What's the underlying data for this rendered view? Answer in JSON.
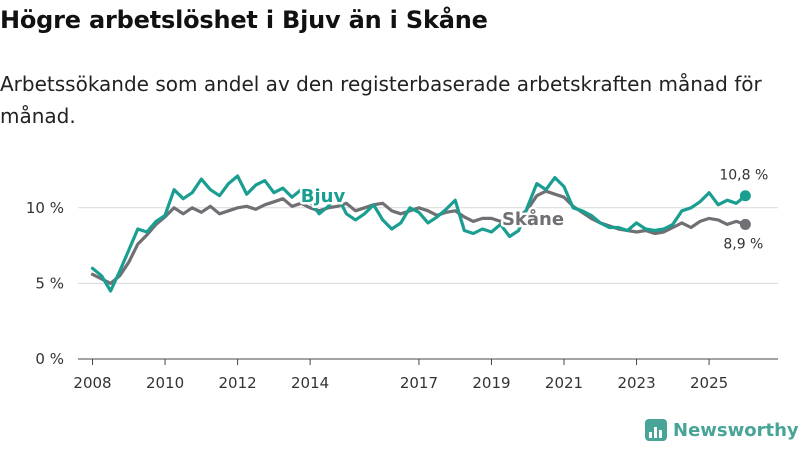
{
  "header": {
    "title": "Högre arbetslöshet i Bjuv än i Skåne",
    "subtitle": "Arbetssökande som andel av den registerbaserade arbetskraften månad för månad."
  },
  "brand": {
    "name": "Newsworthy",
    "icon": "newsworthy-logo-icon",
    "color": "#48a497"
  },
  "chart_data": {
    "type": "line",
    "title": "Högre arbetslöshet i Bjuv än i Skåne",
    "subtitle": "Arbetssökande som andel av den registerbaserade arbetskraften månad för månad.",
    "xlabel": "",
    "ylabel": "",
    "xlim": [
      2007.6,
      2026.9
    ],
    "ylim": [
      0,
      12.5
    ],
    "x_ticks": [
      {
        "value": 2008,
        "label": "2008"
      },
      {
        "value": 2010,
        "label": "2010"
      },
      {
        "value": 2012,
        "label": "2012"
      },
      {
        "value": 2014,
        "label": "2014"
      },
      {
        "value": 2017,
        "label": "2017"
      },
      {
        "value": 2019,
        "label": "2019"
      },
      {
        "value": 2021,
        "label": "2021"
      },
      {
        "value": 2023,
        "label": "2023"
      },
      {
        "value": 2025,
        "label": "2025"
      }
    ],
    "y_ticks": [
      {
        "value": 0,
        "label": "0 %"
      },
      {
        "value": 5,
        "label": "5 %"
      },
      {
        "value": 10,
        "label": "10 %"
      }
    ],
    "grid": true,
    "series": [
      {
        "name": "Skåne",
        "color": "#707074",
        "end_label": "8,9 %",
        "x": [
          2008.0,
          2008.25,
          2008.5,
          2008.75,
          2009.0,
          2009.25,
          2009.5,
          2009.75,
          2010.0,
          2010.25,
          2010.5,
          2010.75,
          2011.0,
          2011.25,
          2011.5,
          2011.75,
          2012.0,
          2012.25,
          2012.5,
          2012.75,
          2013.0,
          2013.25,
          2013.5,
          2013.75,
          2014.0,
          2014.25,
          2014.5,
          2014.75,
          2015.0,
          2015.25,
          2015.5,
          2015.75,
          2016.0,
          2016.25,
          2016.5,
          2016.75,
          2017.0,
          2017.25,
          2017.5,
          2017.75,
          2018.0,
          2018.25,
          2018.5,
          2018.75,
          2019.0,
          2019.25,
          2019.5,
          2019.75,
          2020.0,
          2020.25,
          2020.5,
          2020.75,
          2021.0,
          2021.25,
          2021.5,
          2021.75,
          2022.0,
          2022.25,
          2022.5,
          2022.75,
          2023.0,
          2023.25,
          2023.5,
          2023.75,
          2024.0,
          2024.25,
          2024.5,
          2024.75,
          2025.0,
          2025.25,
          2025.5,
          2025.75,
          2026.0
        ],
        "values": [
          5.6,
          5.3,
          5.0,
          5.5,
          6.4,
          7.6,
          8.2,
          8.9,
          9.4,
          10.0,
          9.6,
          10.0,
          9.7,
          10.1,
          9.6,
          9.8,
          10.0,
          10.1,
          9.9,
          10.2,
          10.4,
          10.6,
          10.1,
          10.3,
          10.0,
          9.8,
          10.0,
          10.1,
          10.3,
          9.8,
          10.0,
          10.2,
          10.3,
          9.8,
          9.6,
          9.8,
          10.0,
          9.8,
          9.5,
          9.7,
          9.8,
          9.4,
          9.1,
          9.3,
          9.3,
          9.1,
          9.2,
          9.4,
          9.9,
          10.8,
          11.1,
          10.9,
          10.7,
          10.1,
          9.7,
          9.3,
          9.0,
          8.8,
          8.6,
          8.5,
          8.4,
          8.5,
          8.3,
          8.4,
          8.7,
          9.0,
          8.7,
          9.1,
          9.3,
          9.2,
          8.9,
          9.1,
          8.9
        ]
      },
      {
        "name": "Bjuv",
        "color": "#1a9e91",
        "end_label": "10,8 %",
        "x": [
          2008.0,
          2008.25,
          2008.5,
          2008.75,
          2009.0,
          2009.25,
          2009.5,
          2009.75,
          2010.0,
          2010.25,
          2010.5,
          2010.75,
          2011.0,
          2011.25,
          2011.5,
          2011.75,
          2012.0,
          2012.25,
          2012.5,
          2012.75,
          2013.0,
          2013.25,
          2013.5,
          2013.75,
          2014.0,
          2014.25,
          2014.5,
          2014.75,
          2015.0,
          2015.25,
          2015.5,
          2015.75,
          2016.0,
          2016.25,
          2016.5,
          2016.75,
          2017.0,
          2017.25,
          2017.5,
          2017.75,
          2018.0,
          2018.25,
          2018.5,
          2018.75,
          2019.0,
          2019.25,
          2019.5,
          2019.75,
          2020.0,
          2020.25,
          2020.5,
          2020.75,
          2021.0,
          2021.25,
          2021.5,
          2021.75,
          2022.0,
          2022.25,
          2022.5,
          2022.75,
          2023.0,
          2023.25,
          2023.5,
          2023.75,
          2024.0,
          2024.25,
          2024.5,
          2024.75,
          2025.0,
          2025.25,
          2025.5,
          2025.75,
          2026.0
        ],
        "values": [
          6.0,
          5.5,
          4.5,
          5.8,
          7.2,
          8.6,
          8.4,
          9.1,
          9.5,
          11.2,
          10.6,
          11.0,
          11.9,
          11.2,
          10.8,
          11.6,
          12.1,
          10.9,
          11.5,
          11.8,
          11.0,
          11.3,
          10.7,
          11.2,
          10.4,
          9.6,
          10.1,
          10.8,
          9.6,
          9.2,
          9.6,
          10.2,
          9.2,
          8.6,
          9.0,
          10.0,
          9.7,
          9.0,
          9.4,
          9.9,
          10.5,
          8.5,
          8.3,
          8.6,
          8.4,
          8.9,
          8.1,
          8.5,
          10.1,
          11.6,
          11.2,
          12.0,
          11.4,
          10.0,
          9.8,
          9.5,
          9.0,
          8.7,
          8.7,
          8.5,
          9.0,
          8.6,
          8.5,
          8.6,
          8.9,
          9.8,
          10.0,
          10.4,
          11.0,
          10.2,
          10.5,
          10.3,
          10.8
        ]
      }
    ]
  }
}
